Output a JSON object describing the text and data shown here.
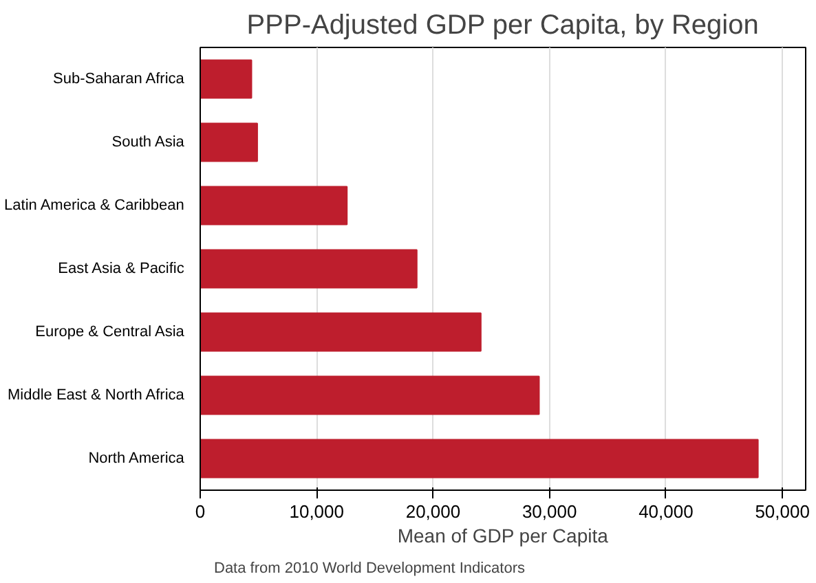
{
  "chart_data": {
    "type": "bar",
    "orientation": "horizontal",
    "title": "PPP-Adjusted GDP per Capita, by Region",
    "xlabel": "Mean of GDP per Capita",
    "categories": [
      "Sub-Saharan Africa",
      "South Asia",
      "Latin America & Caribbean",
      "East Asia & Pacific",
      "Europe & Central Asia",
      "Middle East & North Africa",
      "North America"
    ],
    "values": [
      4400,
      4900,
      12600,
      18600,
      24100,
      29100,
      47900
    ],
    "color": "#be1e2d",
    "xlim": [
      0,
      52000
    ],
    "xticks": [
      {
        "value": 0,
        "label": "0"
      },
      {
        "value": 10000,
        "label": "10,000"
      },
      {
        "value": 20000,
        "label": "20,000"
      },
      {
        "value": 30000,
        "label": "30,000"
      },
      {
        "value": 40000,
        "label": "40,000"
      },
      {
        "value": 50000,
        "label": "50,000"
      }
    ],
    "grid": "x",
    "annotations": [
      "Data from 2010 World Development Indicators"
    ]
  }
}
